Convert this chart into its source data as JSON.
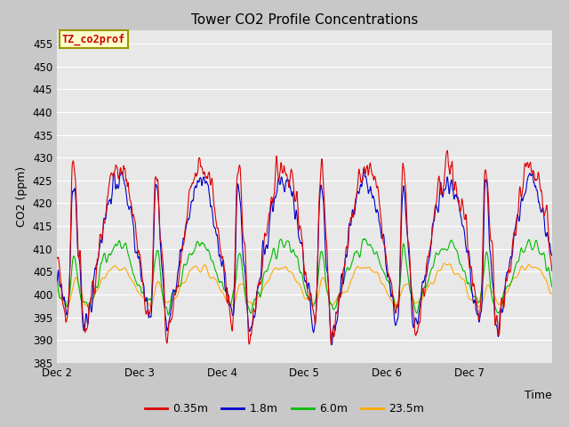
{
  "title": "Tower CO2 Profile Concentrations",
  "xlabel": "Time",
  "ylabel": "CO2 (ppm)",
  "ylim": [
    385,
    458
  ],
  "yticks": [
    385,
    390,
    395,
    400,
    405,
    410,
    415,
    420,
    425,
    430,
    435,
    440,
    445,
    450,
    455
  ],
  "series_labels": [
    "0.35m",
    "1.8m",
    "6.0m",
    "23.5m"
  ],
  "series_colors": [
    "#dd0000",
    "#0000cc",
    "#00bb00",
    "#ffaa00"
  ],
  "line_width": 0.8,
  "fig_bg_color": "#c8c8c8",
  "plot_bg_color": "#e8e8e8",
  "legend_box_color": "#ffffcc",
  "legend_box_edge": "#999900",
  "annotation_text": "TZ_co2prof",
  "annotation_color": "#cc0000",
  "annotation_bg": "#ffffcc",
  "annotation_edge": "#999900",
  "x_day_labels": [
    "Dec 2",
    "Dec 3",
    "Dec 4",
    "Dec 5",
    "Dec 6",
    "Dec 7"
  ],
  "x_tick_pos": [
    0,
    1,
    2,
    3,
    4,
    5
  ],
  "n_points": 1440,
  "seed": 17
}
